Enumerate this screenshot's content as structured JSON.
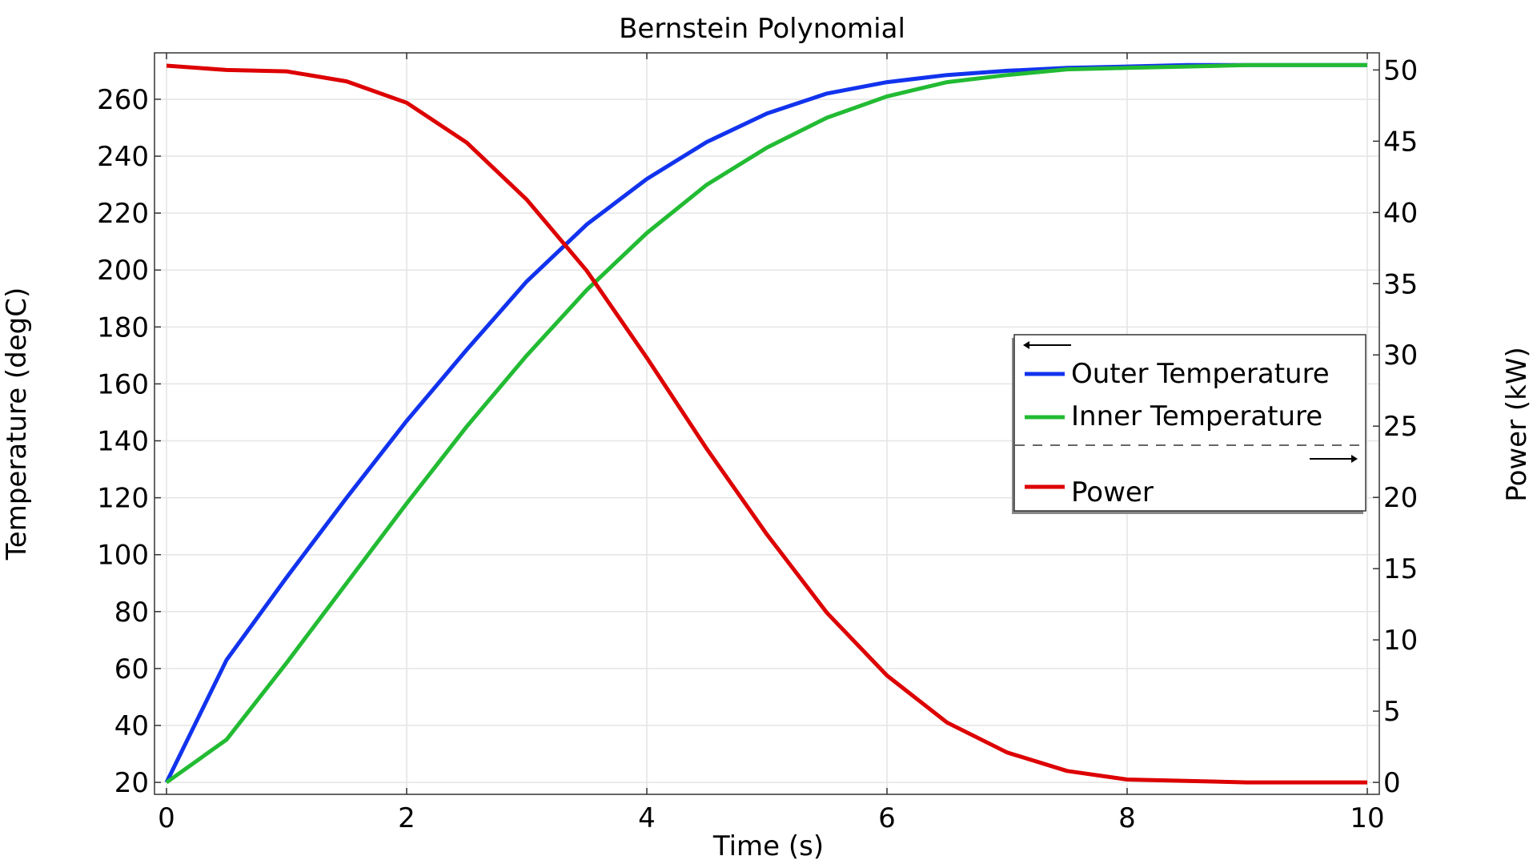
{
  "chart_data": {
    "type": "line",
    "title": "Bernstein Polynomial",
    "xlabel": "Time (s)",
    "ylabel": "Temperature (degC)",
    "y2label": "Power (kW)",
    "xlim": [
      -0.1,
      10.1
    ],
    "ylim": [
      15.8,
      276.3
    ],
    "y2lim": [
      -0.84,
      51.2
    ],
    "grid": true,
    "legend_position": "right",
    "x_ticks": [
      0,
      2,
      4,
      6,
      8,
      10
    ],
    "y_ticks": [
      20,
      40,
      60,
      80,
      100,
      120,
      140,
      160,
      180,
      200,
      220,
      240,
      260
    ],
    "y2_ticks": [
      0,
      5,
      10,
      15,
      20,
      25,
      30,
      35,
      40,
      45,
      50
    ],
    "x": [
      0,
      0.5,
      1,
      1.5,
      2,
      2.5,
      3,
      3.5,
      4,
      4.5,
      5,
      5.5,
      6,
      6.5,
      7,
      7.5,
      8,
      8.5,
      9,
      9.5,
      10
    ],
    "series": [
      {
        "name": "Outer Temperature",
        "axis": "left",
        "color": "#1133ee",
        "values": [
          20,
          63,
          92,
          120,
          147,
          172,
          196,
          216,
          232,
          245,
          255,
          262,
          266,
          268.5,
          270,
          271,
          271.5,
          272,
          272,
          272,
          272
        ]
      },
      {
        "name": "Inner Temperature",
        "axis": "left",
        "color": "#22bb33",
        "values": [
          20,
          35,
          62,
          90,
          118,
          145,
          170,
          193,
          213,
          230,
          243,
          253.5,
          261,
          266,
          268.5,
          270.5,
          271,
          271.5,
          272,
          272,
          272
        ]
      },
      {
        "name": "Power",
        "axis": "right",
        "color": "#dd0000",
        "values": [
          50.3,
          50,
          49.9,
          49.2,
          47.7,
          44.9,
          40.9,
          35.9,
          29.8,
          23.4,
          17.4,
          11.9,
          7.5,
          4.2,
          2.1,
          0.8,
          0.2,
          0.1,
          0,
          0,
          0
        ]
      }
    ]
  }
}
